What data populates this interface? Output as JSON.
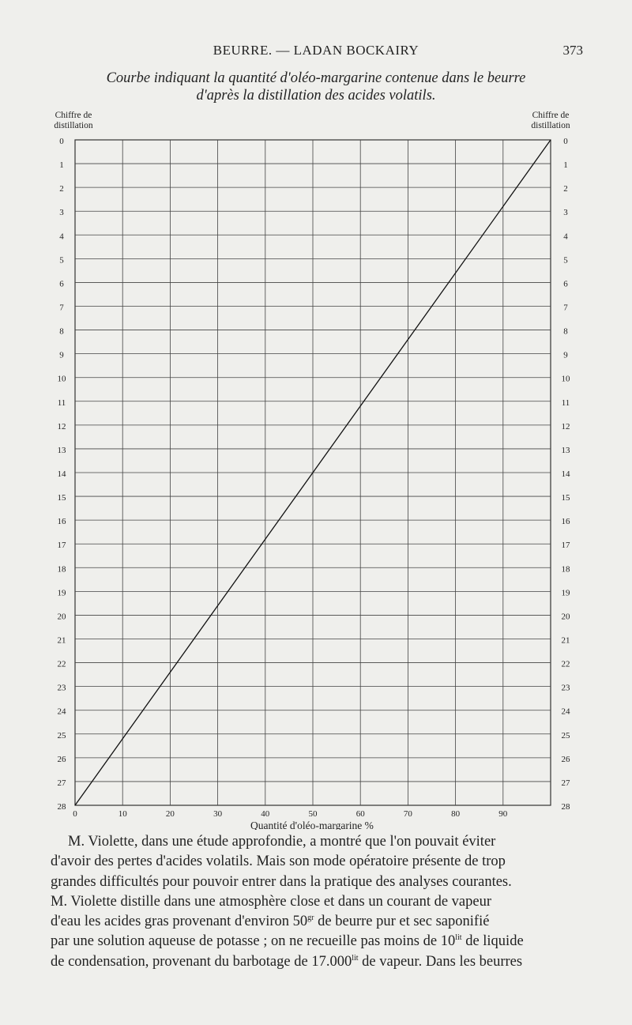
{
  "header": {
    "running_title": "BEURRE. — LADAN BOCKAIRY",
    "page_number": "373"
  },
  "caption": {
    "line1": "Courbe indiquant la quantité d'oléo-margarine contenue dans le beurre",
    "line2": "d'après la distillation des acides volatils."
  },
  "chart_data": {
    "type": "line",
    "title": "Courbe indiquant la quantité d'oléo-margarine contenue dans le beurre d'après la distillation des acides volatils.",
    "left_axis_label": [
      "Chiffre de",
      "distillation"
    ],
    "right_axis_label": [
      "Chiffre de",
      "distillation"
    ],
    "xlabel": "Quantité d'oléo-margarine %",
    "x_ticks": [
      "0",
      "10",
      "20",
      "30",
      "40",
      "50",
      "60",
      "70",
      "80",
      "90"
    ],
    "y_ticks": [
      "0",
      "1",
      "2",
      "3",
      "4",
      "5",
      "6",
      "7",
      "8",
      "9",
      "10",
      "11",
      "12",
      "13",
      "14",
      "15",
      "16",
      "17",
      "18",
      "19",
      "20",
      "21",
      "22",
      "23",
      "24",
      "25",
      "26",
      "27",
      "28"
    ],
    "xlim": [
      0,
      100
    ],
    "ylim": [
      0,
      28
    ],
    "y_inverted": true,
    "grid": true,
    "series": [
      {
        "x": [
          0,
          100
        ],
        "y": [
          28,
          0
        ]
      }
    ]
  },
  "body": {
    "lines": [
      "M. Violette, dans une étude approfondie, a montré que l'on pouvait éviter",
      "d'avoir des pertes d'acides volatils. Mais son mode opératoire présente de trop",
      "grandes difficultés pour pouvoir entrer dans la pratique des analyses courantes.",
      "M. Violette distille dans une atmosphère close et dans un courant de vapeur",
      "d'eau les acides gras provenant d'environ 50gr de beurre pur et sec saponifié",
      "par une solution aqueuse de potasse ; on ne recueille pas moins de 10lit de liquide",
      "de condensation, provenant du barbotage de 17.000lit de vapeur. Dans les beurres"
    ]
  }
}
